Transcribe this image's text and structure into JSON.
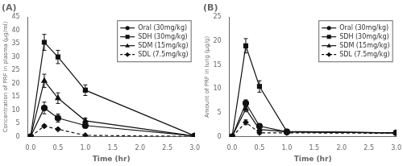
{
  "chart_data": [
    {
      "type": "line",
      "title": "(A)",
      "x_label": "Time (hr)",
      "y_label": "Concentration of PRF in plasma (μg/ml)",
      "xlim": [
        -0.05,
        3
      ],
      "xticks": [
        {
          "value": 0,
          "label": "0.0"
        },
        {
          "value": 0.5,
          "label": "0.5"
        },
        {
          "value": 1,
          "label": "1.0"
        },
        {
          "value": 1.5,
          "label": "1.5"
        },
        {
          "value": 2,
          "label": "2.0"
        },
        {
          "value": 2.5,
          "label": "2.5"
        },
        {
          "value": 3,
          "label": "3.0"
        }
      ],
      "ylim": [
        0,
        45
      ],
      "yticks": [
        0,
        5,
        10,
        15,
        20,
        25,
        30,
        35,
        40,
        45
      ],
      "grid": false,
      "legend": "upper right",
      "x": [
        0,
        0.25,
        0.5,
        1,
        3
      ],
      "series": [
        {
          "name": "Oral (30mg/kg)",
          "color": "#111111",
          "marker": "circle",
          "line_style": "solid",
          "values": [
            0,
            10.8,
            7.0,
            4.2,
            0.3
          ],
          "yerr": [
            0,
            2.2,
            1.5,
            1.0,
            0.05
          ]
        },
        {
          "name": "SDH (30mg/kg)",
          "color": "#111111",
          "marker": "square",
          "line_style": "solid",
          "values": [
            0,
            35.5,
            30.0,
            17.5,
            0.3
          ],
          "yerr": [
            0,
            3.0,
            2.5,
            2.0,
            0.05
          ]
        },
        {
          "name": "SDM (15mg/kg)",
          "color": "#111111",
          "marker": "triangle",
          "line_style": "solid",
          "values": [
            0,
            21.0,
            14.5,
            6.0,
            0.2
          ],
          "yerr": [
            0,
            2.5,
            2.0,
            1.0,
            0.05
          ]
        },
        {
          "name": "SDL (7.5mg/kg)",
          "color": "#111111",
          "marker": "diamond",
          "line_style": "dashed",
          "values": [
            0,
            4.0,
            2.8,
            0.5,
            0.1
          ],
          "yerr": [
            0,
            0.5,
            0.4,
            0.15,
            0.05
          ]
        }
      ]
    },
    {
      "type": "line",
      "title": "(B)",
      "x_label": "Time (hr)",
      "y_label": "Amount of PRF in lung (μg/g)",
      "xlim": [
        -0.05,
        3
      ],
      "xticks": [
        {
          "value": 0,
          "label": "0.0"
        },
        {
          "value": 0.5,
          "label": "0.5"
        },
        {
          "value": 1,
          "label": "1.0"
        },
        {
          "value": 1.5,
          "label": "1.5"
        },
        {
          "value": 2,
          "label": "2.0"
        },
        {
          "value": 2.5,
          "label": "2.5"
        },
        {
          "value": 3,
          "label": "3.0"
        }
      ],
      "ylim": [
        0,
        25
      ],
      "yticks": [
        0,
        5,
        10,
        15,
        20,
        25
      ],
      "grid": false,
      "legend": "upper right",
      "x": [
        0,
        0.25,
        0.5,
        1,
        3
      ],
      "series": [
        {
          "name": "Oral (30mg/kg)",
          "color": "#111111",
          "marker": "circle",
          "line_style": "solid",
          "values": [
            0,
            7.0,
            2.2,
            1.0,
            0.8
          ],
          "yerr": [
            0,
            0.7,
            0.4,
            0.2,
            0.1
          ]
        },
        {
          "name": "SDH (30mg/kg)",
          "color": "#111111",
          "marker": "square",
          "line_style": "solid",
          "values": [
            0,
            19.0,
            10.5,
            1.1,
            0.8
          ],
          "yerr": [
            0,
            1.5,
            1.2,
            0.2,
            0.1
          ]
        },
        {
          "name": "SDM (15mg/kg)",
          "color": "#111111",
          "marker": "triangle",
          "line_style": "solid",
          "values": [
            0,
            5.8,
            1.5,
            1.0,
            0.8
          ],
          "yerr": [
            0,
            0.6,
            0.3,
            0.15,
            0.1
          ]
        },
        {
          "name": "SDL (7.5mg/kg)",
          "color": "#111111",
          "marker": "diamond",
          "line_style": "dashed",
          "values": [
            0,
            3.0,
            0.8,
            0.8,
            0.7
          ],
          "yerr": [
            0,
            0.5,
            0.2,
            0.1,
            0.08
          ]
        }
      ]
    }
  ]
}
